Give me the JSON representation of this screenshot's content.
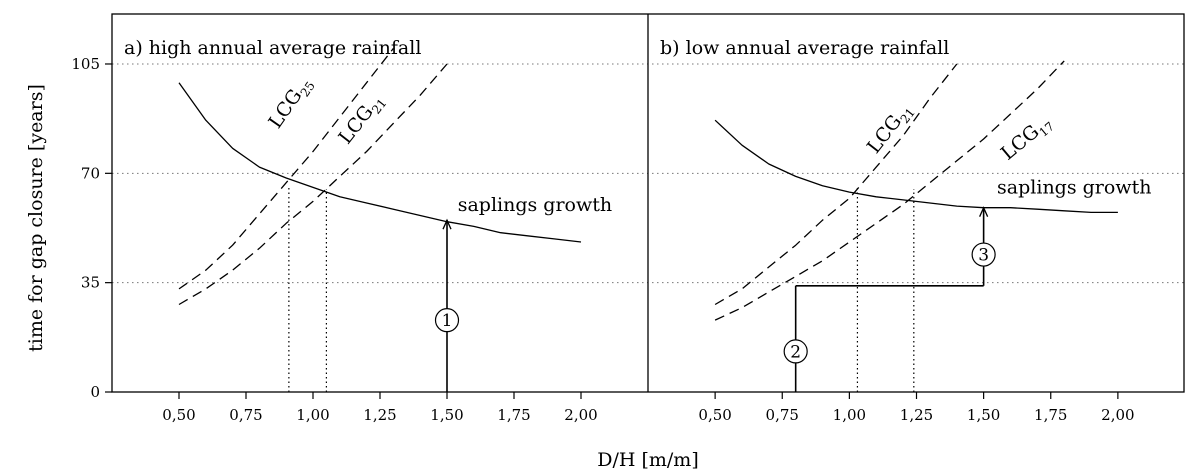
{
  "chart_data": {
    "type": "line",
    "xlabel": "D/H [m/m]",
    "ylabel": "time for gap closure [years]",
    "x_ticks": [
      "0,50",
      "0,75",
      "1,00",
      "1,25",
      "1,50",
      "1,75",
      "2,00"
    ],
    "x_tick_values": [
      0.5,
      0.75,
      1.0,
      1.25,
      1.5,
      1.75,
      2.0
    ],
    "y_ticks": [
      "0",
      "35",
      "70",
      "105"
    ],
    "y_tick_values": [
      0,
      35,
      70,
      105
    ],
    "xlim": [
      0.25,
      2.25
    ],
    "ylim": [
      0,
      121
    ],
    "grid": "horizontal dotted",
    "panels": [
      {
        "title": "a) high annual average rainfall",
        "series": [
          {
            "name": "saplings growth",
            "style": "solid",
            "x": [
              0.5,
              0.6,
              0.7,
              0.8,
              0.9,
              1.0,
              1.1,
              1.2,
              1.3,
              1.4,
              1.5,
              1.6,
              1.7,
              1.8,
              1.9,
              2.0
            ],
            "y": [
              99,
              87,
              78,
              72,
              68.5,
              65.5,
              62.5,
              60.5,
              58.5,
              56.5,
              54.5,
              53,
              51,
              50,
              49,
              48
            ]
          },
          {
            "name": "LCG",
            "sub": "25",
            "style": "dashed",
            "x": [
              0.5,
              0.6,
              0.7,
              0.8,
              0.9,
              1.0,
              1.1,
              1.2,
              1.3
            ],
            "y": [
              33,
              39,
              47,
              57,
              67,
              77,
              88,
              99,
              110
            ]
          },
          {
            "name": "LCG",
            "sub": "21",
            "style": "dashed",
            "x": [
              0.5,
              0.6,
              0.7,
              0.8,
              0.9,
              1.0,
              1.1,
              1.2,
              1.3,
              1.4,
              1.5
            ],
            "y": [
              28,
              33,
              39,
              46,
              54,
              61,
              69,
              77,
              86,
              95,
              105
            ]
          }
        ],
        "vlines": [
          0.91,
          1.05
        ],
        "arrows": [
          {
            "label": "1",
            "x": 1.5,
            "y_from": 0,
            "y_to": 55
          }
        ]
      },
      {
        "title": "b) low annual average rainfall",
        "series": [
          {
            "name": "saplings growth",
            "style": "solid",
            "x": [
              0.5,
              0.6,
              0.7,
              0.8,
              0.9,
              1.0,
              1.1,
              1.2,
              1.3,
              1.4,
              1.5,
              1.6,
              1.7,
              1.8,
              1.9,
              2.0
            ],
            "y": [
              87,
              79,
              73,
              69,
              66,
              64,
              62.5,
              61.5,
              60.5,
              59.5,
              59,
              59,
              58.5,
              58,
              57.5,
              57.5
            ]
          },
          {
            "name": "LCG",
            "sub": "21",
            "style": "dashed",
            "x": [
              0.5,
              0.6,
              0.7,
              0.8,
              0.9,
              1.0,
              1.1,
              1.2,
              1.3,
              1.4
            ],
            "y": [
              28,
              33,
              40,
              47,
              55,
              62,
              72,
              82,
              94,
              105
            ]
          },
          {
            "name": "LCG",
            "sub": "17",
            "style": "dashed",
            "x": [
              0.5,
              0.6,
              0.7,
              0.8,
              0.9,
              1.0,
              1.1,
              1.2,
              1.3,
              1.4,
              1.5,
              1.6,
              1.7,
              1.8
            ],
            "y": [
              23,
              27,
              32,
              37,
              42,
              48,
              54,
              60,
              67,
              74,
              81,
              89,
              97,
              106
            ]
          }
        ],
        "vlines": [
          1.03,
          1.24
        ],
        "arrows": [
          {
            "label": "2",
            "x": 0.8,
            "y_from": 0,
            "y_to": 34
          },
          {
            "label": "3",
            "x": 1.5,
            "y_from": 34,
            "y_to": 59
          }
        ],
        "step": {
          "from_x": 0.8,
          "to_x": 1.5,
          "y": 34
        }
      }
    ]
  }
}
